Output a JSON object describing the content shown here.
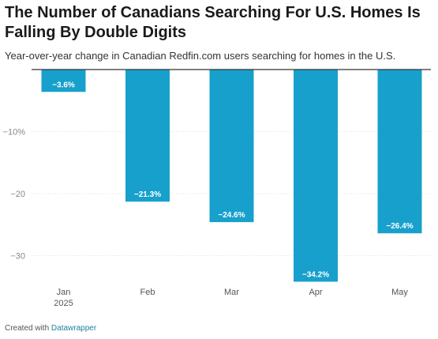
{
  "chart_data": {
    "type": "bar",
    "title": "The Number of Canadians Searching For U.S. Homes Is Falling By Double Digits",
    "subtitle": "Year-over-year change in Canadian Redfin.com users searching for homes in the U.S.",
    "categories": [
      "Jan",
      "Feb",
      "Mar",
      "Apr",
      "May"
    ],
    "category_sublabels": [
      "2025",
      "",
      "",
      "",
      ""
    ],
    "values": [
      -3.6,
      -21.3,
      -24.6,
      -34.2,
      -26.4
    ],
    "value_labels": [
      "−3.6%",
      "−21.3%",
      "−24.6%",
      "−34.2%",
      "−26.4%"
    ],
    "y_ticks": [
      -10,
      -20,
      -30
    ],
    "y_tick_labels": [
      "−10%",
      "−20",
      "−30"
    ],
    "ylim": [
      -36,
      0
    ],
    "xlabel": "",
    "ylabel": "",
    "grid": true,
    "bar_color": "#18a0cc"
  },
  "footer": {
    "prefix": "Created with",
    "brand": "Datawrapper"
  }
}
